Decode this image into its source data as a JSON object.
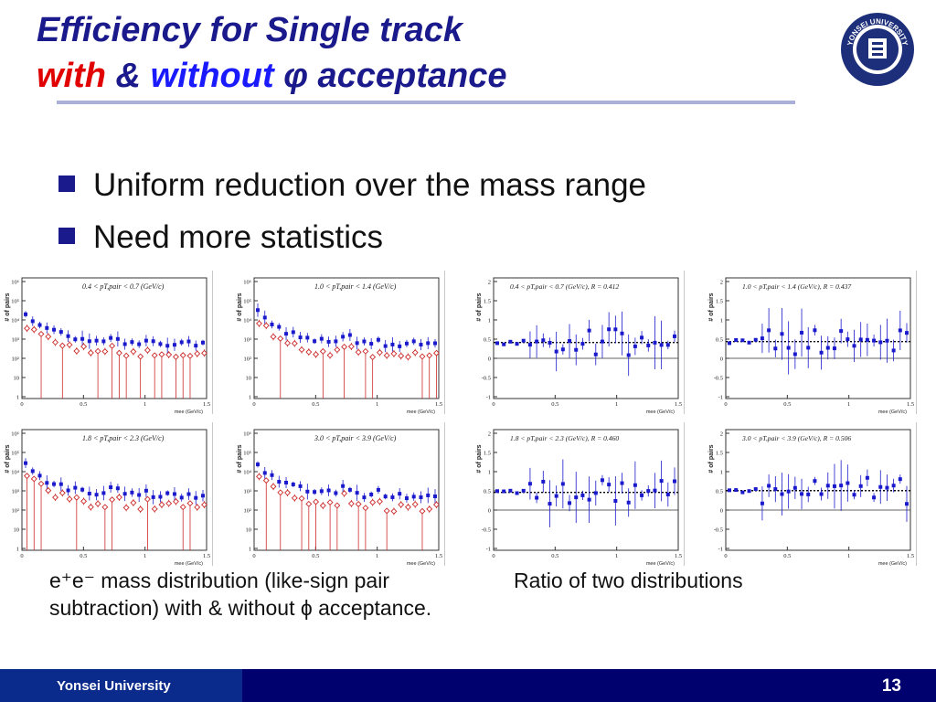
{
  "title": {
    "line1": "Efficiency for Single track",
    "with": "with",
    "amp": "&",
    "without": "without",
    "phi": "φ",
    "acceptance": "acceptance"
  },
  "bullets": [
    "Uniform reduction over the mass range",
    "Need more statistics"
  ],
  "logo": {
    "icon": "yonsei-seal-icon",
    "text": "YONSEI UNIVERSITY"
  },
  "mass_panels": {
    "y_label": "# of pairs",
    "x_label": "mee (GeV/c)",
    "x_ticks": [
      "0",
      "0.5",
      "1",
      "1.5"
    ],
    "y_ticks": [
      "1",
      "10",
      "10²",
      "10³",
      "10⁴",
      "10⁵",
      "10⁶"
    ],
    "items": [
      {
        "label": "0.4 < pT,pair < 0.7 (GeV/c)"
      },
      {
        "label": "1.0 < pT,pair < 1.4 (GeV/c)"
      },
      {
        "label": "1.8 < pT,pair < 2.3 (GeV/c)"
      },
      {
        "label": "3.0 < pT,pair < 3.9 (GeV/c)"
      }
    ]
  },
  "ratio_panels": {
    "y_label": "# of pairs",
    "x_label": "mee (GeV/c)",
    "x_ticks": [
      "0",
      "0.5",
      "1",
      "1.5"
    ],
    "y_ticks": [
      "-1",
      "-0.5",
      "0",
      "0.5",
      "1",
      "1.5",
      "2"
    ],
    "items": [
      {
        "label": "0.4 < pT,pair < 0.7 (GeV/c), R = 0.412",
        "r": 0.412
      },
      {
        "label": "1.0 < pT,pair < 1.4 (GeV/c), R = 0.437",
        "r": 0.437
      },
      {
        "label": "1.8 < pT,pair < 2.3 (GeV/c), R = 0.460",
        "r": 0.46
      },
      {
        "label": "3.0 < pT,pair < 3.9 (GeV/c), R = 0.506",
        "r": 0.506
      }
    ]
  },
  "captions": {
    "left": "e⁺e⁻ mass distribution (like-sign pair subtraction) with & without ϕ acceptance.",
    "right": "Ratio of two distributions"
  },
  "footer": {
    "org": "Yonsei University",
    "page": "13"
  },
  "colors": {
    "title": "#1a1a8c",
    "with": "#e00000",
    "without": "#1a1aff",
    "footer": "#00006e",
    "footer_box": "#0a2a8c",
    "marker_full": "#1a1acc",
    "marker_cut": "#cc2a2a"
  }
}
